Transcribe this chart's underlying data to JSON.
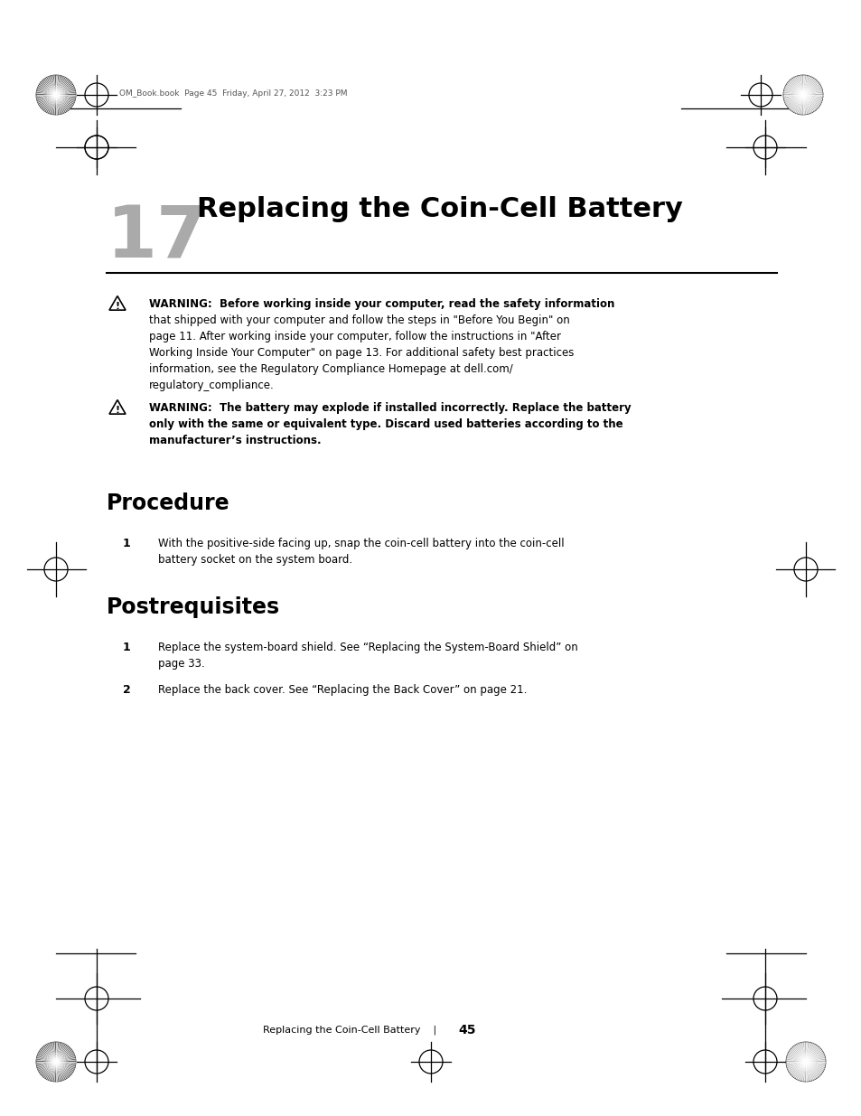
{
  "bg_color": "#ffffff",
  "page_width": 9.54,
  "page_height": 12.35,
  "chapter_number": "17",
  "chapter_title": "Replacing the Coin-Cell Battery",
  "header_text": "OM_Book.book  Page 45  Friday, April 27, 2012  3:23 PM",
  "warning1_line1": "WARNING:  Before working inside your computer, read the safety information",
  "warning1_rest": [
    "that shipped with your computer and follow the steps in \"Before You Begin\" on",
    "page 11. After working inside your computer, follow the instructions in \"After",
    "Working Inside Your Computer\" on page 13. For additional safety best practices",
    "information, see the Regulatory Compliance Homepage at dell.com/",
    "regulatory_compliance."
  ],
  "warning2_lines": [
    "WARNING:  The battery may explode if installed incorrectly. Replace the battery",
    "only with the same or equivalent type. Discard used batteries according to the",
    "manufacturer’s instructions."
  ],
  "procedure_title": "Procedure",
  "procedure_step1_lines": [
    "With the positive-side facing up, snap the coin-cell battery into the coin-cell",
    "battery socket on the system board."
  ],
  "postrequisites_title": "Postrequisites",
  "post_step1_lines": [
    "Replace the system-board shield. See “Replacing the System-Board Shield” on",
    "page 33."
  ],
  "post_step2": "Replace the back cover. See “Replacing the Back Cover” on page 21.",
  "footer_text": "Replacing the Coin-Cell Battery",
  "footer_page": "45"
}
